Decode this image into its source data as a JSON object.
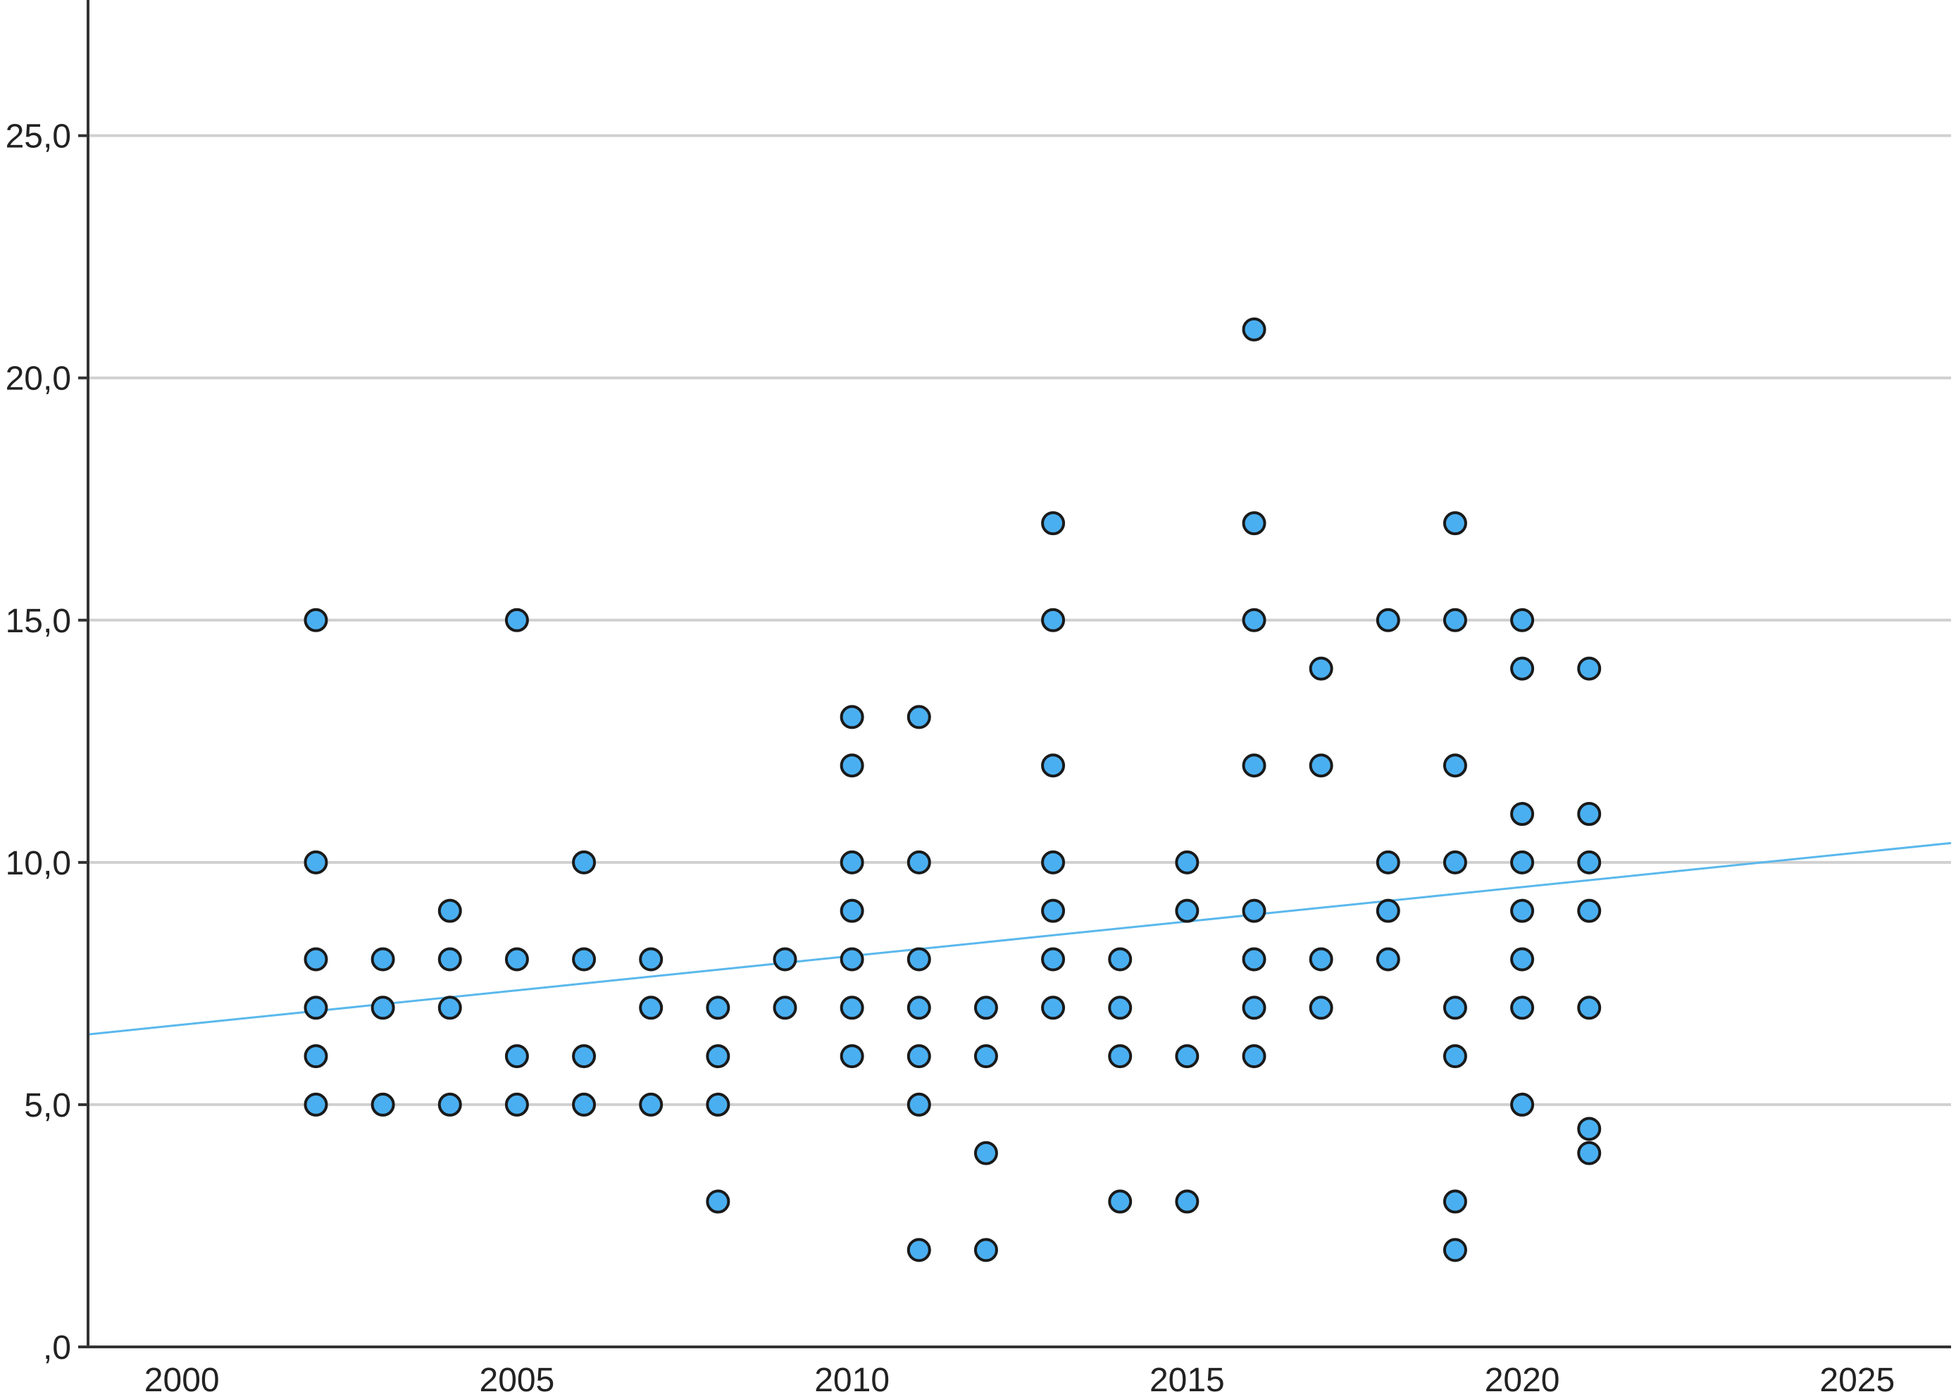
{
  "chart_data": {
    "type": "scatter",
    "title": "",
    "xlabel": "",
    "ylabel": "",
    "xlim": [
      1998.6,
      2026.4
    ],
    "ylim": [
      0,
      27.8
    ],
    "x_ticks": [
      2000,
      2005,
      2010,
      2015,
      2020,
      2025
    ],
    "x_tick_labels": [
      "2000",
      "2005",
      "2010",
      "2015",
      "2020",
      "2025"
    ],
    "y_ticks": [
      0,
      5,
      10,
      15,
      20,
      25
    ],
    "y_tick_labels": [
      ",0",
      "5,0",
      "10,0",
      "15,0",
      "20,0",
      "25,0"
    ],
    "grid": "horizontal",
    "colors": {
      "point_fill": "#4aaff0",
      "point_edge": "#1a1a1a",
      "fit_line": "#5ab8ec",
      "grid": "#d0d0d0",
      "axis": "#333333"
    },
    "points": [
      {
        "x": 2002,
        "y": 15
      },
      {
        "x": 2002,
        "y": 10
      },
      {
        "x": 2002,
        "y": 8
      },
      {
        "x": 2002,
        "y": 7
      },
      {
        "x": 2002,
        "y": 6
      },
      {
        "x": 2002,
        "y": 5
      },
      {
        "x": 2003,
        "y": 8
      },
      {
        "x": 2003,
        "y": 7
      },
      {
        "x": 2003,
        "y": 5
      },
      {
        "x": 2004,
        "y": 9
      },
      {
        "x": 2004,
        "y": 8
      },
      {
        "x": 2004,
        "y": 7
      },
      {
        "x": 2004,
        "y": 5
      },
      {
        "x": 2005,
        "y": 15
      },
      {
        "x": 2005,
        "y": 8
      },
      {
        "x": 2005,
        "y": 6
      },
      {
        "x": 2005,
        "y": 5
      },
      {
        "x": 2006,
        "y": 10
      },
      {
        "x": 2006,
        "y": 8
      },
      {
        "x": 2006,
        "y": 6
      },
      {
        "x": 2006,
        "y": 5
      },
      {
        "x": 2007,
        "y": 8
      },
      {
        "x": 2007,
        "y": 7
      },
      {
        "x": 2007,
        "y": 5
      },
      {
        "x": 2008,
        "y": 7
      },
      {
        "x": 2008,
        "y": 6
      },
      {
        "x": 2008,
        "y": 5
      },
      {
        "x": 2008,
        "y": 3
      },
      {
        "x": 2009,
        "y": 8
      },
      {
        "x": 2009,
        "y": 7
      },
      {
        "x": 2010,
        "y": 13
      },
      {
        "x": 2010,
        "y": 12
      },
      {
        "x": 2010,
        "y": 10
      },
      {
        "x": 2010,
        "y": 9
      },
      {
        "x": 2010,
        "y": 8
      },
      {
        "x": 2010,
        "y": 7
      },
      {
        "x": 2010,
        "y": 6
      },
      {
        "x": 2011,
        "y": 13
      },
      {
        "x": 2011,
        "y": 10
      },
      {
        "x": 2011,
        "y": 8
      },
      {
        "x": 2011,
        "y": 7
      },
      {
        "x": 2011,
        "y": 6
      },
      {
        "x": 2011,
        "y": 5
      },
      {
        "x": 2011,
        "y": 2
      },
      {
        "x": 2012,
        "y": 7
      },
      {
        "x": 2012,
        "y": 6
      },
      {
        "x": 2012,
        "y": 4
      },
      {
        "x": 2012,
        "y": 2
      },
      {
        "x": 2013,
        "y": 17
      },
      {
        "x": 2013,
        "y": 15
      },
      {
        "x": 2013,
        "y": 12
      },
      {
        "x": 2013,
        "y": 10
      },
      {
        "x": 2013,
        "y": 9
      },
      {
        "x": 2013,
        "y": 8
      },
      {
        "x": 2013,
        "y": 7
      },
      {
        "x": 2014,
        "y": 8
      },
      {
        "x": 2014,
        "y": 7
      },
      {
        "x": 2014,
        "y": 6
      },
      {
        "x": 2014,
        "y": 3
      },
      {
        "x": 2015,
        "y": 10
      },
      {
        "x": 2015,
        "y": 9
      },
      {
        "x": 2015,
        "y": 6
      },
      {
        "x": 2015,
        "y": 3
      },
      {
        "x": 2016,
        "y": 21
      },
      {
        "x": 2016,
        "y": 17
      },
      {
        "x": 2016,
        "y": 15
      },
      {
        "x": 2016,
        "y": 12
      },
      {
        "x": 2016,
        "y": 9
      },
      {
        "x": 2016,
        "y": 8
      },
      {
        "x": 2016,
        "y": 7
      },
      {
        "x": 2016,
        "y": 6
      },
      {
        "x": 2017,
        "y": 14
      },
      {
        "x": 2017,
        "y": 12
      },
      {
        "x": 2017,
        "y": 8
      },
      {
        "x": 2017,
        "y": 7
      },
      {
        "x": 2018,
        "y": 15
      },
      {
        "x": 2018,
        "y": 10
      },
      {
        "x": 2018,
        "y": 9
      },
      {
        "x": 2018,
        "y": 8
      },
      {
        "x": 2019,
        "y": 17
      },
      {
        "x": 2019,
        "y": 15
      },
      {
        "x": 2019,
        "y": 12
      },
      {
        "x": 2019,
        "y": 10
      },
      {
        "x": 2019,
        "y": 7
      },
      {
        "x": 2019,
        "y": 6
      },
      {
        "x": 2019,
        "y": 3
      },
      {
        "x": 2019,
        "y": 2
      },
      {
        "x": 2020,
        "y": 15
      },
      {
        "x": 2020,
        "y": 14
      },
      {
        "x": 2020,
        "y": 11
      },
      {
        "x": 2020,
        "y": 10
      },
      {
        "x": 2020,
        "y": 9
      },
      {
        "x": 2020,
        "y": 8
      },
      {
        "x": 2020,
        "y": 7
      },
      {
        "x": 2020,
        "y": 5
      },
      {
        "x": 2021,
        "y": 14
      },
      {
        "x": 2021,
        "y": 11
      },
      {
        "x": 2021,
        "y": 10
      },
      {
        "x": 2021,
        "y": 9
      },
      {
        "x": 2021,
        "y": 7
      },
      {
        "x": 2021,
        "y": 4.5
      },
      {
        "x": 2021,
        "y": 4
      }
    ],
    "fit_line": {
      "x": [
        1998.6,
        2026.4
      ],
      "y": [
        6.45,
        10.4
      ]
    }
  }
}
